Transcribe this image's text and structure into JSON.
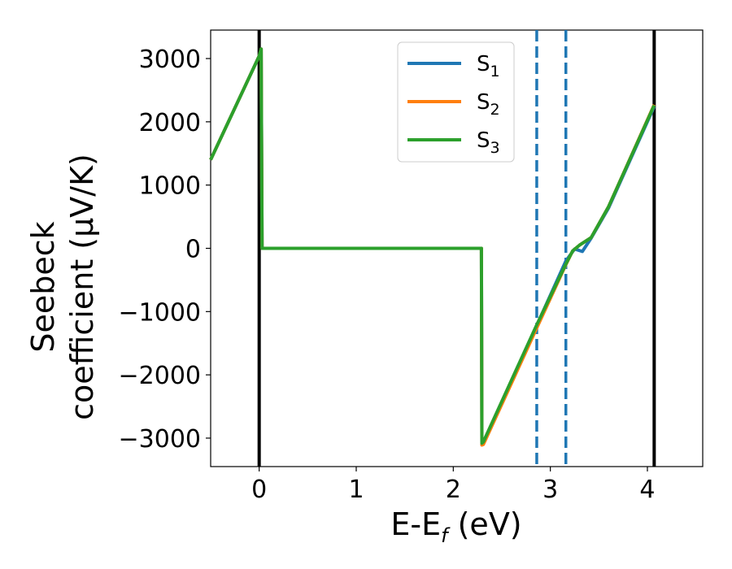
{
  "chart_data": {
    "type": "line",
    "xlabel": "E-E",
    "xlabel_sub": "f",
    "xlabel_unit": " (eV)",
    "ylabel_line1": "Seebeck",
    "ylabel_line2": "coefficient  (μV/K)",
    "xlim": [
      -0.5,
      4.57
    ],
    "ylim": [
      -3450,
      3450
    ],
    "xticks": [
      0,
      1,
      2,
      3,
      4
    ],
    "xtick_labels": [
      "0",
      "1",
      "2",
      "3",
      "4"
    ],
    "yticks": [
      3000,
      2000,
      1000,
      0,
      -1000,
      -2000,
      -3000
    ],
    "ytick_labels": [
      "3000",
      "2000",
      "1000",
      "0",
      "−1000",
      "−2000",
      "−3000"
    ],
    "legend_position": "top-center",
    "vertical_lines": [
      {
        "x": 0.0,
        "style": "solid",
        "color": "#000000"
      },
      {
        "x": 4.07,
        "style": "solid",
        "color": "#000000"
      },
      {
        "x": 2.86,
        "style": "dashed",
        "color": "#1f77b4"
      },
      {
        "x": 3.16,
        "style": "dashed",
        "color": "#1f77b4"
      }
    ],
    "series": [
      {
        "name": "S",
        "sub": "1",
        "color": "#1f77b4",
        "x": [
          -0.5,
          0.0,
          0.02,
          0.03,
          2.29,
          2.295,
          2.31,
          2.86,
          3.16,
          3.25,
          3.33,
          3.42,
          3.6,
          4.07
        ],
        "y": [
          1400,
          3040,
          3150,
          0,
          0,
          -3090,
          -3070,
          -1220,
          -200,
          -10,
          -50,
          160,
          640,
          2240
        ]
      },
      {
        "name": "S",
        "sub": "2",
        "color": "#ff7f0e",
        "x": [
          -0.5,
          0.0,
          0.02,
          0.03,
          2.29,
          2.295,
          2.31,
          2.86,
          3.16,
          3.23,
          3.3,
          3.42,
          3.6,
          4.07
        ],
        "y": [
          1400,
          3040,
          3150,
          0,
          0,
          -3110,
          -3100,
          -1260,
          -260,
          -40,
          50,
          170,
          660,
          2270
        ]
      },
      {
        "name": "S",
        "sub": "3",
        "color": "#2ca02c",
        "x": [
          -0.5,
          0.0,
          0.02,
          0.03,
          2.29,
          2.295,
          2.31,
          2.86,
          3.16,
          3.23,
          3.3,
          3.42,
          3.6,
          4.07
        ],
        "y": [
          1400,
          3040,
          3150,
          0,
          0,
          -3080,
          -3060,
          -1210,
          -250,
          -40,
          50,
          170,
          660,
          2260
        ]
      }
    ]
  }
}
